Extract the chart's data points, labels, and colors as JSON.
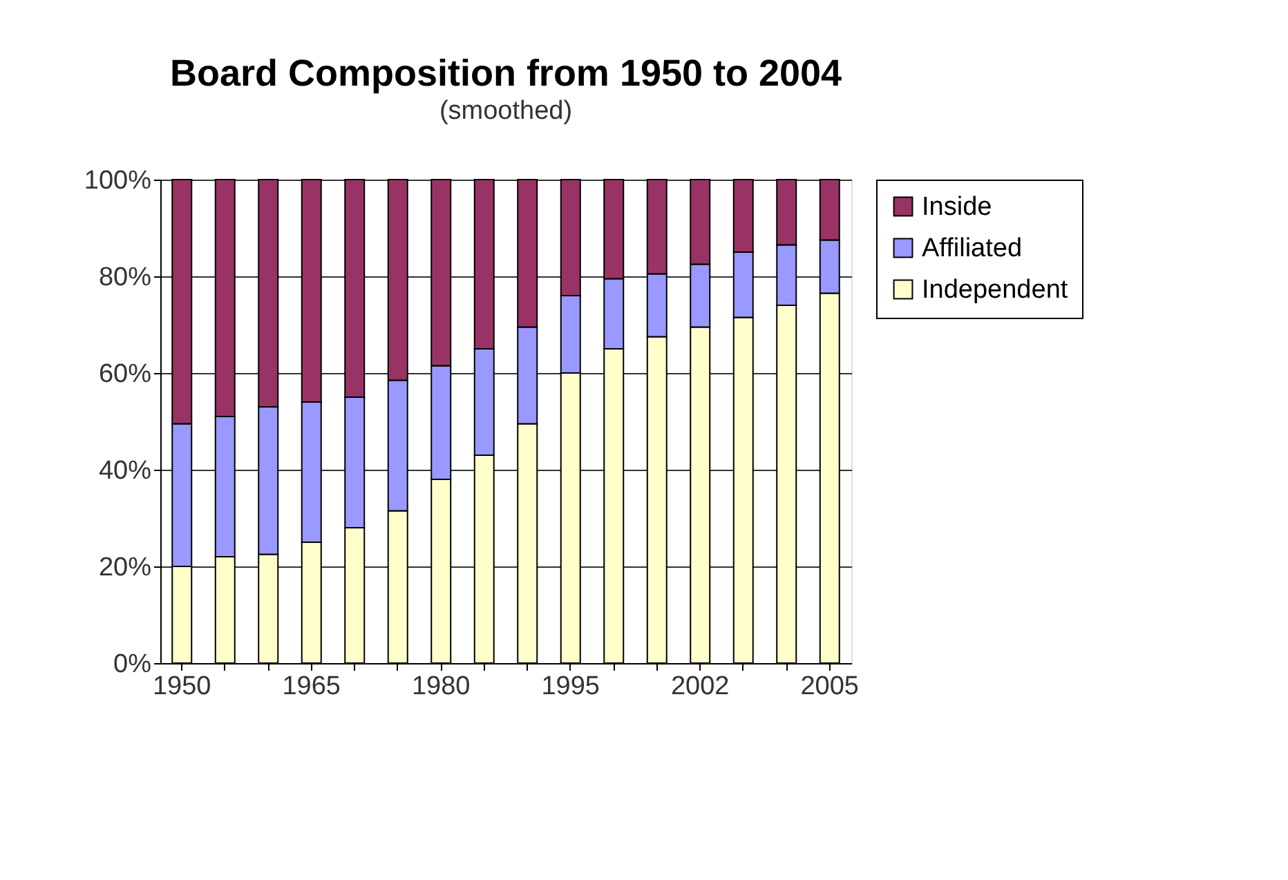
{
  "chart_data": {
    "type": "bar",
    "title": "Board Composition from 1950 to 2004",
    "subtitle": "(smoothed)",
    "categories": [
      "1950",
      null,
      null,
      "1965",
      null,
      null,
      "1980",
      null,
      null,
      "1995",
      null,
      null,
      "2002",
      null,
      null,
      "2005"
    ],
    "stacked": true,
    "series": [
      {
        "name": "Independent",
        "color": "#ffffcc",
        "values": [
          20,
          22,
          22.5,
          25,
          28,
          31.5,
          38,
          43,
          49.5,
          60,
          65,
          67.5,
          69.5,
          71.5,
          74,
          76.5
        ]
      },
      {
        "name": "Affiliated",
        "color": "#9999ff",
        "values": [
          29.5,
          29,
          30.5,
          29,
          27,
          27,
          23.5,
          22,
          20,
          16,
          14.5,
          13,
          13,
          13.5,
          12.5,
          11
        ]
      },
      {
        "name": "Inside",
        "color": "#993366",
        "values": [
          50.5,
          49,
          47,
          46,
          45,
          41.5,
          38.5,
          35,
          30.5,
          24,
          20.5,
          19.5,
          17.5,
          15,
          13.5,
          12.5
        ]
      }
    ],
    "ylim": [
      0,
      100
    ],
    "yticks": [
      {
        "value": 0,
        "label": "0%"
      },
      {
        "value": 20,
        "label": "20%"
      },
      {
        "value": 40,
        "label": "40%"
      },
      {
        "value": 60,
        "label": "60%"
      },
      {
        "value": 80,
        "label": "80%"
      },
      {
        "value": 100,
        "label": "100%"
      }
    ],
    "grid": "y",
    "legend": "right"
  }
}
